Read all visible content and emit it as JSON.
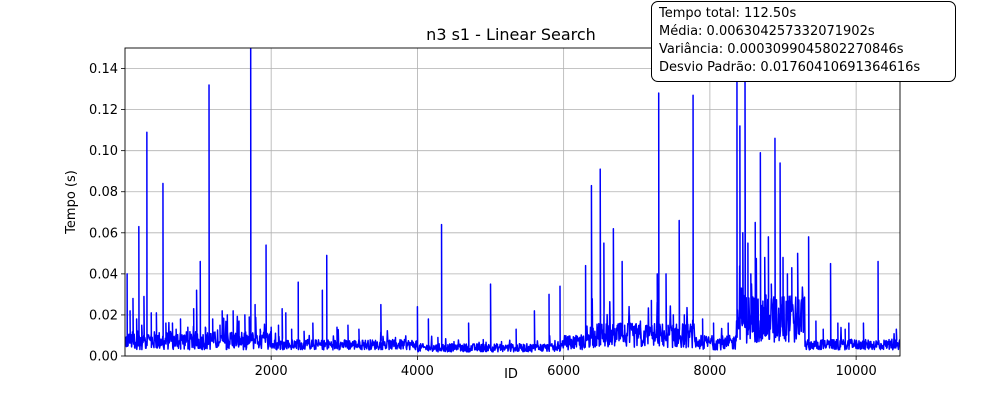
{
  "chart_data": {
    "type": "line",
    "title": "n3 s1 - Linear Search",
    "xlabel": "ID",
    "ylabel": "Tempo (s)",
    "xlim": [
      1,
      10600
    ],
    "ylim": [
      0.0,
      0.15
    ],
    "x_ticks": [
      2000,
      4000,
      6000,
      8000,
      10000
    ],
    "y_ticks": [
      0.0,
      0.02,
      0.04,
      0.06,
      0.08,
      0.1,
      0.12,
      0.14
    ],
    "grid": true,
    "series": [
      {
        "color": "#0000ff",
        "peaks": [
          [
            30,
            0.04
          ],
          [
            70,
            0.022
          ],
          [
            110,
            0.028
          ],
          [
            160,
            0.018
          ],
          [
            190,
            0.063
          ],
          [
            230,
            0.015
          ],
          [
            260,
            0.029
          ],
          [
            300,
            0.109
          ],
          [
            360,
            0.021
          ],
          [
            430,
            0.021
          ],
          [
            520,
            0.084
          ],
          [
            560,
            0.016
          ],
          [
            650,
            0.016
          ],
          [
            700,
            0.013
          ],
          [
            760,
            0.018
          ],
          [
            860,
            0.014
          ],
          [
            940,
            0.023
          ],
          [
            980,
            0.032
          ],
          [
            1030,
            0.046
          ],
          [
            1100,
            0.014
          ],
          [
            1150,
            0.132
          ],
          [
            1200,
            0.018
          ],
          [
            1300,
            0.015
          ],
          [
            1330,
            0.022
          ],
          [
            1400,
            0.02
          ],
          [
            1480,
            0.022
          ],
          [
            1560,
            0.017
          ],
          [
            1640,
            0.02
          ],
          [
            1700,
            0.019
          ],
          [
            1720,
            0.15
          ],
          [
            1780,
            0.025
          ],
          [
            1850,
            0.013
          ],
          [
            1930,
            0.054
          ],
          [
            2000,
            0.014
          ],
          [
            2100,
            0.015
          ],
          [
            2150,
            0.023
          ],
          [
            2200,
            0.021
          ],
          [
            2280,
            0.013
          ],
          [
            2370,
            0.036
          ],
          [
            2450,
            0.012
          ],
          [
            2570,
            0.016
          ],
          [
            2700,
            0.032
          ],
          [
            2760,
            0.049
          ],
          [
            2900,
            0.014
          ],
          [
            3050,
            0.015
          ],
          [
            3200,
            0.013
          ],
          [
            3500,
            0.025
          ],
          [
            3700,
            0.009
          ],
          [
            4000,
            0.024
          ],
          [
            4150,
            0.018
          ],
          [
            4280,
            0.009
          ],
          [
            4330,
            0.064
          ],
          [
            4500,
            0.007
          ],
          [
            4700,
            0.016
          ],
          [
            4900,
            0.008
          ],
          [
            5000,
            0.035
          ],
          [
            5150,
            0.007
          ],
          [
            5350,
            0.013
          ],
          [
            5600,
            0.022
          ],
          [
            5800,
            0.03
          ],
          [
            5950,
            0.034
          ],
          [
            6100,
            0.008
          ],
          [
            6300,
            0.044
          ],
          [
            6380,
            0.083
          ],
          [
            6500,
            0.091
          ],
          [
            6550,
            0.055
          ],
          [
            6680,
            0.062
          ],
          [
            6800,
            0.046
          ],
          [
            6900,
            0.02
          ],
          [
            7050,
            0.017
          ],
          [
            7200,
            0.027
          ],
          [
            7280,
            0.04
          ],
          [
            7300,
            0.128
          ],
          [
            7400,
            0.04
          ],
          [
            7500,
            0.02
          ],
          [
            7580,
            0.066
          ],
          [
            7650,
            0.02
          ],
          [
            7770,
            0.127
          ],
          [
            7900,
            0.018
          ],
          [
            8050,
            0.016
          ],
          [
            8250,
            0.016
          ],
          [
            8370,
            0.15
          ],
          [
            8410,
            0.112
          ],
          [
            8450,
            0.06
          ],
          [
            8480,
            0.15
          ],
          [
            8520,
            0.055
          ],
          [
            8560,
            0.04
          ],
          [
            8620,
            0.065
          ],
          [
            8690,
            0.099
          ],
          [
            8750,
            0.048
          ],
          [
            8800,
            0.058
          ],
          [
            8840,
            0.035
          ],
          [
            8890,
            0.106
          ],
          [
            8960,
            0.094
          ],
          [
            9000,
            0.048
          ],
          [
            9060,
            0.04
          ],
          [
            9120,
            0.043
          ],
          [
            9200,
            0.05
          ],
          [
            9250,
            0.012
          ],
          [
            9350,
            0.058
          ],
          [
            9450,
            0.017
          ],
          [
            9550,
            0.013
          ],
          [
            9650,
            0.045
          ],
          [
            9750,
            0.016
          ],
          [
            9850,
            0.013
          ],
          [
            9900,
            0.016
          ],
          [
            10100,
            0.016
          ],
          [
            10300,
            0.046
          ],
          [
            10450,
            0.008
          ],
          [
            10550,
            0.013
          ]
        ],
        "baseline_bands": [
          [
            0,
            2000,
            0.003,
            0.012
          ],
          [
            2000,
            4000,
            0.003,
            0.008
          ],
          [
            4000,
            6000,
            0.002,
            0.006
          ],
          [
            6000,
            6300,
            0.003,
            0.01
          ],
          [
            6300,
            7800,
            0.004,
            0.016
          ],
          [
            7800,
            8350,
            0.003,
            0.01
          ],
          [
            8350,
            9300,
            0.006,
            0.03
          ],
          [
            9300,
            10600,
            0.003,
            0.008
          ]
        ]
      }
    ]
  },
  "stats": {
    "line1": "Tempo total: 112.50s",
    "line2": "Média: 0.006304257332071902s",
    "line3": "Variância: 0.0003099045802270846s",
    "line4": "Desvio Padrão: 0.01760410691364616s"
  }
}
